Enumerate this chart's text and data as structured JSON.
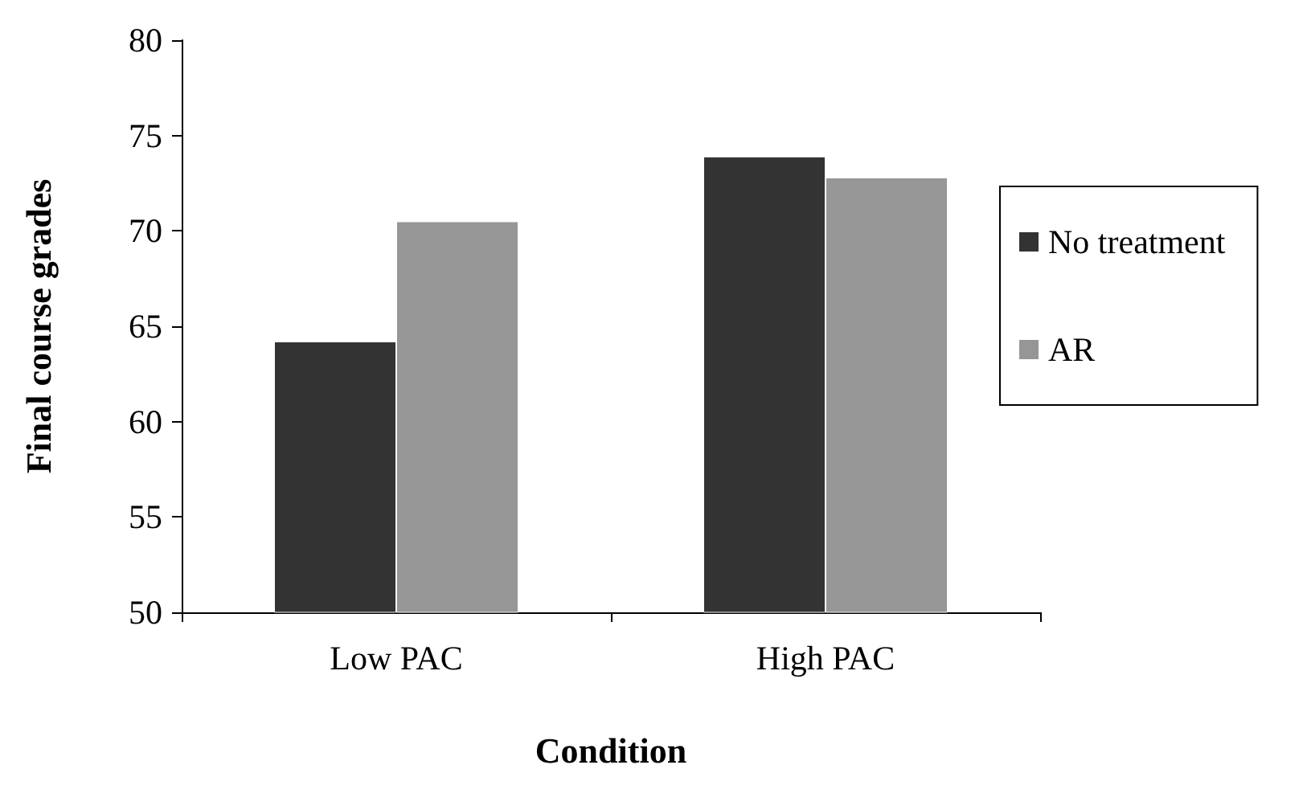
{
  "chart_data": {
    "type": "bar",
    "xlabel": "Condition",
    "ylabel": "Final course grades",
    "categories": [
      "Low PAC",
      "High PAC"
    ],
    "series": [
      {
        "name": "No treatment",
        "color": "#333333",
        "values": [
          64.2,
          73.9
        ]
      },
      {
        "name": "AR",
        "color": "#969696",
        "values": [
          70.5,
          72.8
        ]
      }
    ],
    "ylim": [
      50,
      80
    ],
    "yticks": [
      50,
      55,
      60,
      65,
      70,
      75,
      80
    ],
    "grid": false,
    "legend": "right"
  }
}
